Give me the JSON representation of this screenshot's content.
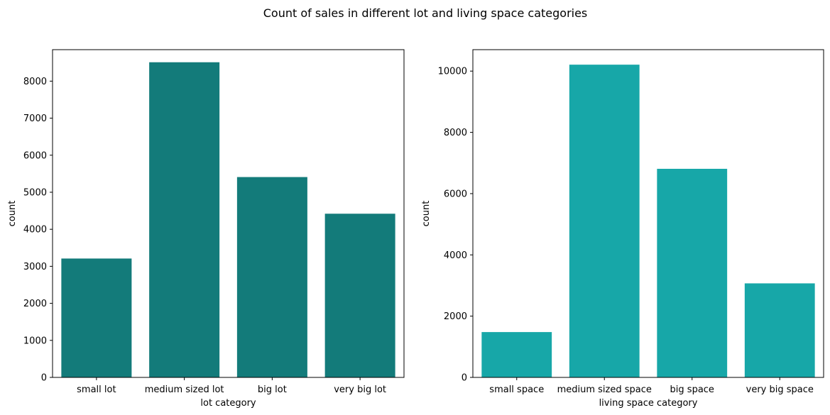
{
  "figure": {
    "title": "Count of sales in different lot and living space categories"
  },
  "chart_data": [
    {
      "type": "bar",
      "title": "",
      "xlabel": "lot category",
      "ylabel": "count",
      "categories": [
        "small lot",
        "medium sized lot",
        "big lot",
        "very big lot"
      ],
      "values": [
        3210,
        8510,
        5410,
        4420
      ],
      "ylim": [
        0,
        8850
      ],
      "yticks": [
        0,
        1000,
        2000,
        3000,
        4000,
        5000,
        6000,
        7000,
        8000
      ],
      "color": "#137b7a",
      "grid": false
    },
    {
      "type": "bar",
      "title": "",
      "xlabel": "living space category",
      "ylabel": "count",
      "categories": [
        "small space",
        "medium sized space",
        "big space",
        "very big space"
      ],
      "values": [
        1480,
        10210,
        6810,
        3070
      ],
      "ylim": [
        0,
        10700
      ],
      "yticks": [
        0,
        2000,
        4000,
        6000,
        8000,
        10000
      ],
      "color": "#17a7a8",
      "grid": false
    }
  ]
}
